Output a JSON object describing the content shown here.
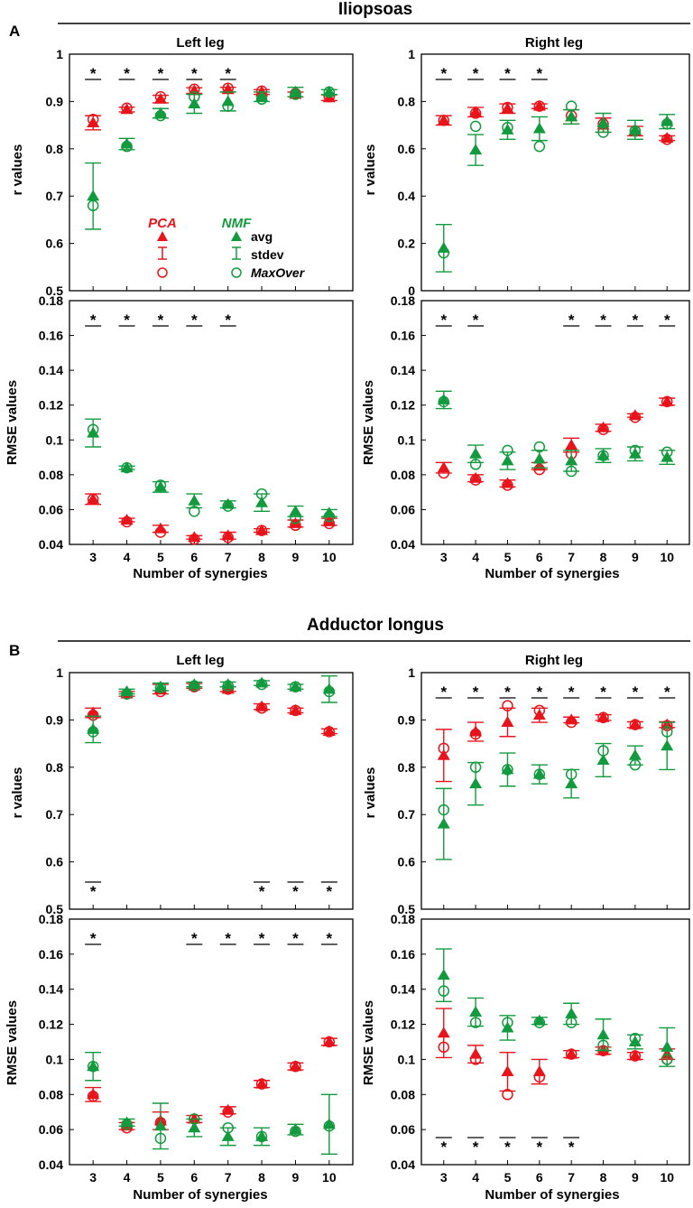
{
  "figure": {
    "sections": [
      {
        "letter": "A",
        "title": "Iliopsoas"
      },
      {
        "letter": "B",
        "title": "Adductor longus"
      }
    ],
    "x_axis_label": "Number of synergies",
    "left_title": "Left leg",
    "right_title": "Right leg",
    "r_ylabel": "r values",
    "rmse_ylabel": "RMSE values"
  },
  "legend": {
    "pca": "PCA",
    "nmf": "NMF",
    "avg": "avg",
    "stdev": "stdev",
    "maxover": "MaxOver"
  },
  "colors": {
    "pca": "#e8141b",
    "nmf": "#139a3e",
    "axis": "#000000"
  },
  "chart_data": [
    {
      "id": "A_r_left",
      "type": "scatter",
      "title": "Left leg",
      "xlabel": "",
      "ylabel": "r values",
      "x": [
        3,
        4,
        5,
        6,
        7,
        8,
        9,
        10
      ],
      "xlim": [
        2.3,
        10.7
      ],
      "ylim": [
        0.5,
        1
      ],
      "yticks": [
        0.5,
        0.6,
        0.7,
        0.8,
        0.9,
        1
      ],
      "ytick_labels": [
        "0.5",
        "0.6",
        "0.7",
        "0.8",
        "0.9",
        "1"
      ],
      "xticks_shown": false,
      "series": [
        {
          "name": "PCA",
          "avg": [
            0.855,
            0.883,
            0.905,
            0.923,
            0.925,
            0.92,
            0.915,
            0.908
          ],
          "sd": [
            0.015,
            0.005,
            0.008,
            0.006,
            0.005,
            0.005,
            0.005,
            0.006
          ],
          "max": [
            0.862,
            0.886,
            0.91,
            0.926,
            0.928,
            0.922,
            0.917,
            0.91
          ]
        },
        {
          "name": "NMF",
          "avg": [
            0.7,
            0.81,
            0.875,
            0.895,
            0.9,
            0.91,
            0.92,
            0.92
          ],
          "sd": [
            0.07,
            0.012,
            0.01,
            0.02,
            0.02,
            0.01,
            0.01,
            0.005
          ],
          "max": [
            0.68,
            0.805,
            0.87,
            0.91,
            0.89,
            0.905,
            0.915,
            0.92
          ]
        }
      ],
      "significance": [
        3,
        4,
        5,
        6,
        7
      ],
      "sig_position": "top"
    },
    {
      "id": "A_r_right",
      "type": "scatter",
      "title": "Right leg",
      "xlabel": "",
      "ylabel": "",
      "x": [
        3,
        4,
        5,
        6,
        7,
        8,
        9,
        10
      ],
      "xlim": [
        2.3,
        10.7
      ],
      "ylim": [
        0,
        1
      ],
      "yticks": [
        0,
        0.2,
        0.4,
        0.6,
        0.8,
        1
      ],
      "ytick_labels": [
        "0",
        "0.2",
        "0.4",
        "0.6",
        "0.8",
        "1"
      ],
      "xticks_shown": false,
      "series": [
        {
          "name": "PCA",
          "avg": [
            0.72,
            0.755,
            0.77,
            0.78,
            0.735,
            0.7,
            0.675,
            0.645
          ],
          "sd": [
            0.02,
            0.02,
            0.02,
            0.01,
            0.03,
            0.03,
            0.02,
            0.01
          ],
          "max": [
            0.72,
            0.75,
            0.775,
            0.78,
            0.74,
            0.705,
            0.675,
            0.64
          ]
        },
        {
          "name": "NMF",
          "avg": [
            0.18,
            0.595,
            0.68,
            0.685,
            0.735,
            0.71,
            0.68,
            0.715
          ],
          "sd": [
            0.1,
            0.065,
            0.04,
            0.05,
            0.03,
            0.04,
            0.04,
            0.03
          ],
          "max": [
            0.16,
            0.695,
            0.69,
            0.61,
            0.78,
            0.67,
            0.675,
            0.705
          ]
        }
      ],
      "significance": [
        3,
        4,
        5,
        6
      ],
      "sig_position": "top"
    },
    {
      "id": "A_rmse_left",
      "type": "scatter",
      "title": "",
      "xlabel": "Number of synergies",
      "ylabel": "RMSE values",
      "x": [
        3,
        4,
        5,
        6,
        7,
        8,
        9,
        10
      ],
      "xlim": [
        2.3,
        10.7
      ],
      "ylim": [
        0.04,
        0.18
      ],
      "yticks": [
        0.04,
        0.06,
        0.08,
        0.1,
        0.12,
        0.14,
        0.16,
        0.18
      ],
      "ytick_labels": [
        "0.04",
        "0.06",
        "0.08",
        "0.1",
        "0.12",
        "0.14",
        "0.16",
        "0.18"
      ],
      "xticks_shown": true,
      "series": [
        {
          "name": "PCA",
          "avg": [
            0.066,
            0.054,
            0.049,
            0.044,
            0.045,
            0.048,
            0.052,
            0.053
          ],
          "sd": [
            0.003,
            0.001,
            0.002,
            0.001,
            0.002,
            0.001,
            0.002,
            0.002
          ],
          "max": [
            0.066,
            0.053,
            0.047,
            0.043,
            0.044,
            0.048,
            0.051,
            0.052
          ]
        },
        {
          "name": "NMF",
          "avg": [
            0.104,
            0.084,
            0.073,
            0.065,
            0.063,
            0.064,
            0.059,
            0.058
          ],
          "sd": [
            0.008,
            0.001,
            0.003,
            0.004,
            0.002,
            0.005,
            0.003,
            0.002
          ],
          "max": [
            0.106,
            0.084,
            0.074,
            0.059,
            0.062,
            0.069,
            0.055,
            0.056
          ]
        }
      ],
      "significance": [
        3,
        4,
        5,
        6,
        7
      ],
      "sig_position": "top"
    },
    {
      "id": "A_rmse_right",
      "type": "scatter",
      "title": "",
      "xlabel": "Number of synergies",
      "ylabel": "RMSE values",
      "x": [
        3,
        4,
        5,
        6,
        7,
        8,
        9,
        10
      ],
      "xlim": [
        2.3,
        10.7
      ],
      "ylim": [
        0.04,
        0.18
      ],
      "yticks": [
        0.04,
        0.06,
        0.08,
        0.1,
        0.12,
        0.14,
        0.16,
        0.18
      ],
      "ytick_labels": [
        "0.04",
        "0.06",
        "0.08",
        "0.1",
        "0.12",
        "0.14",
        "0.16",
        "0.18"
      ],
      "xticks_shown": true,
      "series": [
        {
          "name": "PCA",
          "avg": [
            0.084,
            0.078,
            0.075,
            0.085,
            0.097,
            0.107,
            0.114,
            0.122
          ],
          "sd": [
            0.003,
            0.002,
            0.002,
            0.002,
            0.004,
            0.002,
            0.001,
            0.002
          ],
          "max": [
            0.081,
            0.077,
            0.074,
            0.083,
            0.092,
            0.106,
            0.113,
            0.122
          ]
        },
        {
          "name": "NMF",
          "avg": [
            0.123,
            0.092,
            0.088,
            0.089,
            0.088,
            0.091,
            0.092,
            0.09
          ],
          "sd": [
            0.005,
            0.005,
            0.005,
            0.005,
            0.006,
            0.004,
            0.004,
            0.004
          ],
          "max": [
            0.122,
            0.086,
            0.094,
            0.096,
            0.082,
            0.091,
            0.094,
            0.093
          ]
        }
      ],
      "significance": [
        3,
        4,
        7,
        8,
        9,
        10
      ],
      "sig_position": "top"
    },
    {
      "id": "B_r_left",
      "type": "scatter",
      "title": "Left leg",
      "xlabel": "",
      "ylabel": "r values",
      "x": [
        3,
        4,
        5,
        6,
        7,
        8,
        9,
        10
      ],
      "xlim": [
        2.3,
        10.7
      ],
      "ylim": [
        0.5,
        1
      ],
      "yticks": [
        0.5,
        0.6,
        0.7,
        0.8,
        0.9,
        1
      ],
      "ytick_labels": [
        "0.5",
        "0.6",
        "0.7",
        "0.8",
        "0.9",
        "1"
      ],
      "xticks_shown": false,
      "series": [
        {
          "name": "PCA",
          "avg": [
            0.915,
            0.955,
            0.965,
            0.972,
            0.965,
            0.928,
            0.92,
            0.876
          ],
          "sd": [
            0.01,
            0.005,
            0.01,
            0.005,
            0.005,
            0.006,
            0.005,
            0.005
          ],
          "max": [
            0.91,
            0.955,
            0.96,
            0.97,
            0.965,
            0.925,
            0.92,
            0.875
          ]
        },
        {
          "name": "NMF",
          "avg": [
            0.88,
            0.96,
            0.97,
            0.975,
            0.975,
            0.978,
            0.97,
            0.965
          ],
          "sd": [
            0.028,
            0.005,
            0.008,
            0.005,
            0.005,
            0.005,
            0.005,
            0.028
          ],
          "max": [
            0.875,
            0.955,
            0.968,
            0.972,
            0.972,
            0.975,
            0.97,
            0.96
          ]
        }
      ],
      "significance": [
        3,
        8,
        9,
        10
      ],
      "sig_position": "bottom"
    },
    {
      "id": "B_r_right",
      "type": "scatter",
      "title": "Right leg",
      "xlabel": "",
      "ylabel": "r values",
      "x": [
        3,
        4,
        5,
        6,
        7,
        8,
        9,
        10
      ],
      "xlim": [
        2.3,
        10.7
      ],
      "ylim": [
        0.5,
        1
      ],
      "yticks": [
        0.5,
        0.6,
        0.7,
        0.8,
        0.9,
        1
      ],
      "ytick_labels": [
        "0.5",
        "0.6",
        "0.7",
        "0.8",
        "0.9",
        "1"
      ],
      "xticks_shown": false,
      "series": [
        {
          "name": "PCA",
          "avg": [
            0.825,
            0.875,
            0.895,
            0.91,
            0.9,
            0.905,
            0.89,
            0.89
          ],
          "sd": [
            0.055,
            0.02,
            0.03,
            0.015,
            0.006,
            0.006,
            0.006,
            0.006
          ],
          "max": [
            0.84,
            0.87,
            0.93,
            0.92,
            0.895,
            0.905,
            0.89,
            0.888
          ]
        },
        {
          "name": "NMF",
          "avg": [
            0.68,
            0.765,
            0.795,
            0.785,
            0.765,
            0.815,
            0.825,
            0.845
          ],
          "sd": [
            0.075,
            0.045,
            0.035,
            0.02,
            0.03,
            0.035,
            0.02,
            0.05
          ],
          "max": [
            0.71,
            0.8,
            0.795,
            0.785,
            0.785,
            0.835,
            0.805,
            0.875
          ]
        }
      ],
      "significance": [
        3,
        4,
        5,
        6,
        7,
        8,
        9,
        10
      ],
      "sig_position": "top"
    },
    {
      "id": "B_rmse_left",
      "type": "scatter",
      "title": "",
      "xlabel": "Number of synergies",
      "ylabel": "RMSE values",
      "x": [
        3,
        4,
        5,
        6,
        7,
        8,
        9,
        10
      ],
      "xlim": [
        2.3,
        10.7
      ],
      "ylim": [
        0.04,
        0.18
      ],
      "yticks": [
        0.04,
        0.06,
        0.08,
        0.1,
        0.12,
        0.14,
        0.16,
        0.18
      ],
      "ytick_labels": [
        "0.04",
        "0.06",
        "0.08",
        "0.1",
        "0.12",
        "0.14",
        "0.16",
        "0.18"
      ],
      "xticks_shown": true,
      "series": [
        {
          "name": "PCA",
          "avg": [
            0.08,
            0.062,
            0.065,
            0.066,
            0.071,
            0.086,
            0.096,
            0.11
          ],
          "sd": [
            0.004,
            0.002,
            0.005,
            0.002,
            0.002,
            0.002,
            0.002,
            0.002
          ],
          "max": [
            0.079,
            0.061,
            0.064,
            0.066,
            0.07,
            0.086,
            0.096,
            0.11
          ]
        },
        {
          "name": "NMF",
          "avg": [
            0.096,
            0.064,
            0.062,
            0.061,
            0.056,
            0.056,
            0.06,
            0.063
          ],
          "sd": [
            0.008,
            0.002,
            0.013,
            0.005,
            0.005,
            0.005,
            0.003,
            0.017
          ],
          "max": [
            0.096,
            0.063,
            0.055,
            0.066,
            0.061,
            0.056,
            0.059,
            0.062
          ]
        }
      ],
      "significance": [
        3,
        6,
        7,
        8,
        9,
        10
      ],
      "sig_position": "top"
    },
    {
      "id": "B_rmse_right",
      "type": "scatter",
      "title": "",
      "xlabel": "Number of synergies",
      "ylabel": "RMSE values",
      "x": [
        3,
        4,
        5,
        6,
        7,
        8,
        9,
        10
      ],
      "xlim": [
        2.3,
        10.7
      ],
      "ylim": [
        0.04,
        0.18
      ],
      "yticks": [
        0.04,
        0.06,
        0.08,
        0.1,
        0.12,
        0.14,
        0.16,
        0.18
      ],
      "ytick_labels": [
        "0.04",
        "0.06",
        "0.08",
        "0.1",
        "0.12",
        "0.14",
        "0.16",
        "0.18"
      ],
      "xticks_shown": true,
      "series": [
        {
          "name": "PCA",
          "avg": [
            0.115,
            0.103,
            0.093,
            0.093,
            0.103,
            0.105,
            0.102,
            0.103
          ],
          "sd": [
            0.014,
            0.005,
            0.011,
            0.007,
            0.002,
            0.002,
            0.002,
            0.003
          ],
          "max": [
            0.107,
            0.1,
            0.08,
            0.09,
            0.103,
            0.105,
            0.102,
            0.1
          ]
        },
        {
          "name": "NMF",
          "avg": [
            0.148,
            0.127,
            0.118,
            0.122,
            0.126,
            0.114,
            0.11,
            0.107
          ],
          "sd": [
            0.015,
            0.008,
            0.007,
            0.002,
            0.006,
            0.009,
            0.004,
            0.011
          ],
          "max": [
            0.139,
            0.121,
            0.121,
            0.121,
            0.121,
            0.108,
            0.112,
            0.1
          ]
        }
      ],
      "significance": [
        3,
        4,
        5,
        6,
        7
      ],
      "sig_position": "bottom"
    }
  ]
}
